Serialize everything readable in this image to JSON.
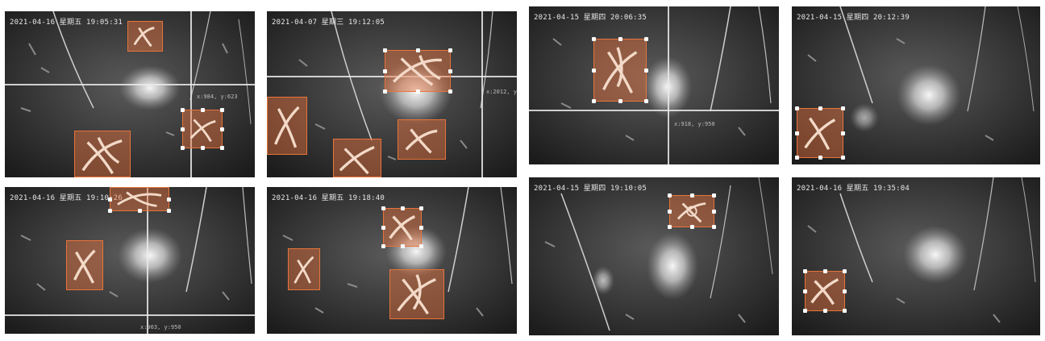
{
  "panels": [
    {
      "timestamp": "2021-04-16 星期五 19:05:31",
      "coord": "x:984, y:623"
    },
    {
      "timestamp": "2021-04-07 星期三 19:12:05",
      "coord": "x:2012, y:"
    },
    {
      "timestamp": "2021-04-15 星期四 20:06:35",
      "coord": "x:918, y:950"
    },
    {
      "timestamp": "2021-04-15 星期四 20:12:39",
      "coord": ""
    },
    {
      "timestamp": "2021-04-16 星期五 19:10:26",
      "coord": "x:903, y:950"
    },
    {
      "timestamp": "2021-04-16 星期五 19:18:40",
      "coord": ""
    },
    {
      "timestamp": "2021-04-15 星期四 19:10:05",
      "coord": ""
    },
    {
      "timestamp": "2021-04-16 星期五 19:35:04",
      "coord": ""
    }
  ],
  "colors": {
    "box_fill": "#e8743c",
    "handle": "#ffffff"
  }
}
